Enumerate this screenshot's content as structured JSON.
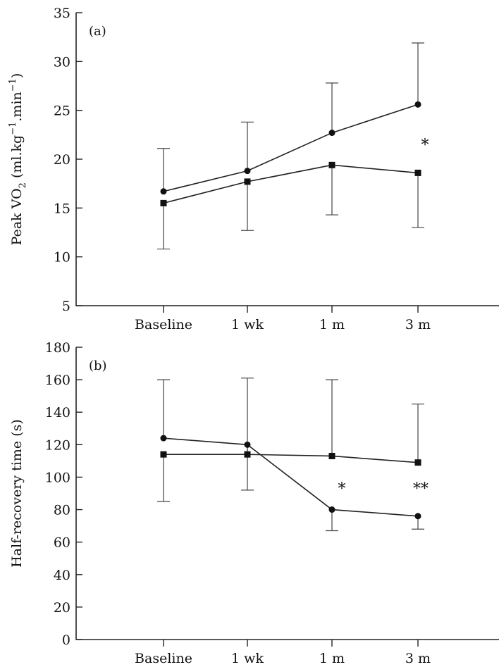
{
  "chart_data": [
    {
      "type": "line",
      "panel_label": "(a)",
      "ylabel_main": "Peak VO",
      "ylabel_sub": "2",
      "ylabel_rest_a": " (ml.kg",
      "ylabel_sup1": "−1",
      "ylabel_rest_b": ".min",
      "ylabel_sup2": "−1",
      "ylabel_rest_c": ")",
      "categories": [
        "Baseline",
        "1 wk",
        "1 m",
        "3 m"
      ],
      "ylim": [
        5,
        35
      ],
      "yticks": [
        5,
        10,
        15,
        20,
        25,
        30,
        35
      ],
      "series": [
        {
          "marker": "circle",
          "values": [
            16.7,
            18.8,
            22.7,
            25.6
          ],
          "error_upper": [
            21.1,
            23.8,
            27.8,
            31.9
          ],
          "error_lower": [
            null,
            null,
            null,
            null
          ]
        },
        {
          "marker": "square",
          "values": [
            15.5,
            17.7,
            19.4,
            18.6
          ],
          "error_upper": [
            null,
            null,
            null,
            null
          ],
          "error_lower": [
            10.8,
            12.7,
            14.3,
            13.0
          ]
        }
      ],
      "annotations": [
        {
          "text": "*",
          "category_index": 3,
          "y": 21.8
        }
      ]
    },
    {
      "type": "line",
      "panel_label": "(b)",
      "ylabel_main": "Half-recovery time (s)",
      "categories": [
        "Baseline",
        "1 wk",
        "1 m",
        "3 m"
      ],
      "ylim": [
        0,
        180
      ],
      "yticks": [
        0,
        20,
        40,
        60,
        80,
        100,
        120,
        140,
        160,
        180
      ],
      "series": [
        {
          "marker": "circle",
          "values": [
            124,
            120,
            80,
            76
          ],
          "error_upper": [
            160,
            null,
            null,
            null
          ],
          "error_lower": [
            null,
            92,
            67,
            68
          ]
        },
        {
          "marker": "square",
          "values": [
            114,
            114,
            113,
            109
          ],
          "error_upper": [
            null,
            161,
            160,
            145
          ],
          "error_lower": [
            85,
            null,
            null,
            null
          ]
        }
      ],
      "annotations": [
        {
          "text": "*",
          "category_index": 2,
          "y": 95
        },
        {
          "text": "**",
          "category_index": 3,
          "y": 95
        }
      ]
    }
  ]
}
